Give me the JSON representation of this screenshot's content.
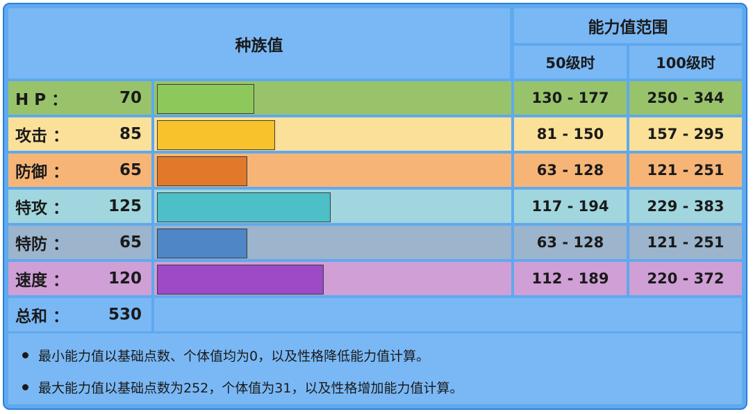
{
  "header": {
    "base_title": "种族值",
    "range_title": "能力值范围",
    "lv50": "50级时",
    "lv100": "100级时"
  },
  "rows": [
    {
      "name": "H P ：",
      "value": "70",
      "lv50": "130 - 177",
      "lv100": "250 - 344",
      "fill": 0.2745,
      "bg": "#98c36b",
      "bar": "#8cc85a"
    },
    {
      "name": "攻击 ：",
      "value": "85",
      "lv50": "81 - 150",
      "lv100": "157 - 295",
      "fill": 0.3333,
      "bg": "#fbe09a",
      "bar": "#f7c22c"
    },
    {
      "name": "防御 ：",
      "value": "65",
      "lv50": "63 - 128",
      "lv100": "121 - 251",
      "fill": 0.2549,
      "bg": "#f6b577",
      "bar": "#e1792b"
    },
    {
      "name": "特攻 ：",
      "value": "125",
      "lv50": "117 - 194",
      "lv100": "229 - 383",
      "fill": 0.4902,
      "bg": "#a1d6de",
      "bar": "#4cbfc7"
    },
    {
      "name": "特防 ：",
      "value": "65",
      "lv50": "63 - 128",
      "lv100": "121 - 251",
      "fill": 0.2549,
      "bg": "#9cb4cc",
      "bar": "#4e86c6"
    },
    {
      "name": "速度 ：",
      "value": "120",
      "lv50": "112 - 189",
      "lv100": "220 - 372",
      "fill": 0.4706,
      "bg": "#cf9fd6",
      "bar": "#9c4ac6"
    }
  ],
  "total": {
    "name": "总和 ：",
    "value": "530"
  },
  "notes": [
    "最小能力值以基础点数、个体值均为0，以及性格降低能力值计算。",
    "最大能力值以基础点数为252，个体值为31，以及性格增加能力值计算。"
  ],
  "colors": {
    "frame": "#5fa9ee",
    "header": "#7ab8f5",
    "border": "#2a7fdb"
  }
}
